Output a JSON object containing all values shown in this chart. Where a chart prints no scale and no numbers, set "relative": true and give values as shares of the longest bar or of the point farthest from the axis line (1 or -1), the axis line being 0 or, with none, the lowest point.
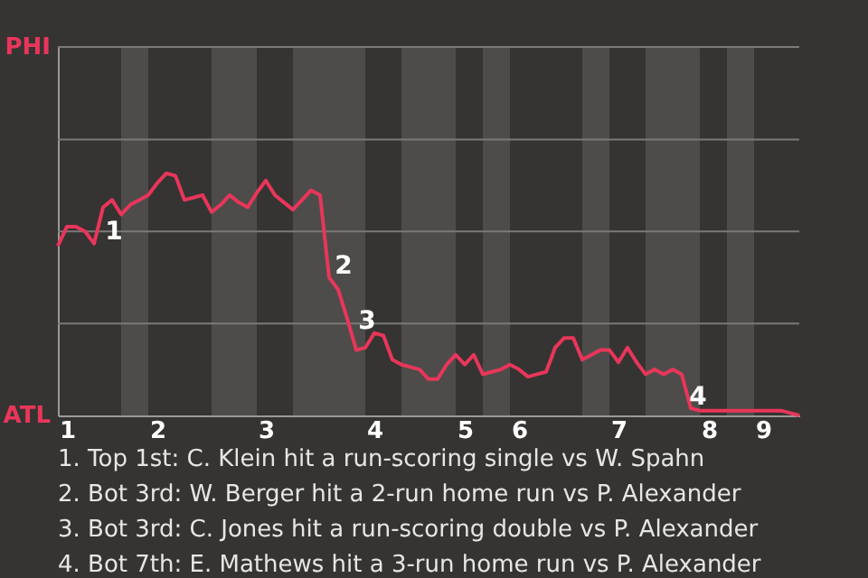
{
  "chart_data": {
    "type": "line",
    "relative": true,
    "categories": [
      null,
      "1",
      null,
      null,
      null,
      null,
      null,
      null,
      null,
      null,
      null,
      "2",
      null,
      null,
      null,
      null,
      null,
      null,
      null,
      null,
      null,
      null,
      null,
      "3",
      null,
      null,
      null,
      null,
      null,
      null,
      null,
      null,
      null,
      null,
      null,
      "4",
      null,
      null,
      null,
      null,
      null,
      null,
      null,
      null,
      null,
      "5",
      null,
      null,
      null,
      null,
      null,
      "6",
      null,
      null,
      null,
      null,
      null,
      null,
      null,
      null,
      null,
      null,
      "7",
      null,
      null,
      null,
      null,
      null,
      null,
      null,
      null,
      null,
      "8",
      null,
      null,
      null,
      null,
      null,
      "9",
      null,
      null,
      null,
      null
    ],
    "series": [
      {
        "color": "#e8365a",
        "values": [
          0.7,
          0.78,
          0.78,
          0.76,
          0.71,
          0.86,
          0.89,
          0.83,
          0.87,
          0.89,
          0.91,
          0.96,
          1,
          0.99,
          0.89,
          0.9,
          0.91,
          0.84,
          0.87,
          0.91,
          0.88,
          0.86,
          0.92,
          0.97,
          0.91,
          0.88,
          0.85,
          0.89,
          0.93,
          0.91,
          0.57,
          0.52,
          0.4,
          0.27,
          0.28,
          0.34,
          0.33,
          0.23,
          0.21,
          0.2,
          0.19,
          0.15,
          0.15,
          0.21,
          0.25,
          0.21,
          0.25,
          0.17,
          0.18,
          0.19,
          0.21,
          0.19,
          0.16,
          0.17,
          0.18,
          0.28,
          0.32,
          0.32,
          0.23,
          0.25,
          0.27,
          0.27,
          0.22,
          0.28,
          0.22,
          0.17,
          0.19,
          0.17,
          0.19,
          0.17,
          0.03,
          0.02,
          0.02,
          0.02,
          0.02,
          0.02,
          0.02,
          0.02,
          0.02,
          0.02,
          0.02,
          0.01,
          0.0
        ]
      }
    ],
    "ref_lines": [
      {
        "axis": "y",
        "value": 0.38,
        "color": "#7a7a7a"
      },
      {
        "axis": "y",
        "value": 0.76,
        "color": "#7a7a7a"
      },
      {
        "axis": "y",
        "value": 1.14,
        "color": "#7a7a7a"
      }
    ],
    "marker": "none",
    "line_style": "solid",
    "annotations": [
      "PHI",
      "ATL",
      "1",
      "2",
      "3",
      "4",
      "1. Top 1st: C. Klein hit a run-scoring single vs W. Spahn",
      "2. Bot 3rd: W. Berger hit a 2-run home run vs P. Alexander",
      "3. Bot 3rd: C. Jones hit a run-scoring double vs P. Alexander",
      "4. Bot 7th: E. Mathews hit a 3-run home run vs P. Alexander"
    ]
  }
}
